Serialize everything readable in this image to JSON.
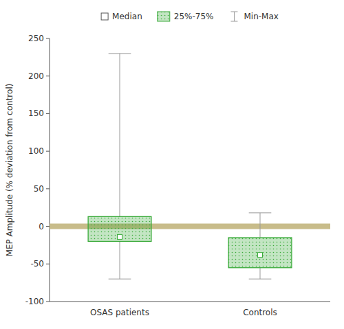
{
  "chart_data": {
    "type": "box",
    "categories": [
      "OSAS patients",
      "Controls"
    ],
    "boxes": [
      {
        "median": -14,
        "q1": -20,
        "q3": 13,
        "min": -70,
        "max": 230
      },
      {
        "median": -38,
        "q1": -55,
        "q3": -15,
        "min": -70,
        "max": 18
      }
    ],
    "ylabel": "MEP Amplitude (% deviation from control)",
    "ylim": [
      -100,
      250
    ],
    "yticks": [
      -100,
      -50,
      0,
      50,
      100,
      150,
      200,
      250
    ],
    "reference_line": 0,
    "color": "#3aaa3a",
    "grid": false,
    "legend": "top",
    "median_label": "Median",
    "box_label": "25%-75%",
    "whisker_label": "Min-Max"
  }
}
